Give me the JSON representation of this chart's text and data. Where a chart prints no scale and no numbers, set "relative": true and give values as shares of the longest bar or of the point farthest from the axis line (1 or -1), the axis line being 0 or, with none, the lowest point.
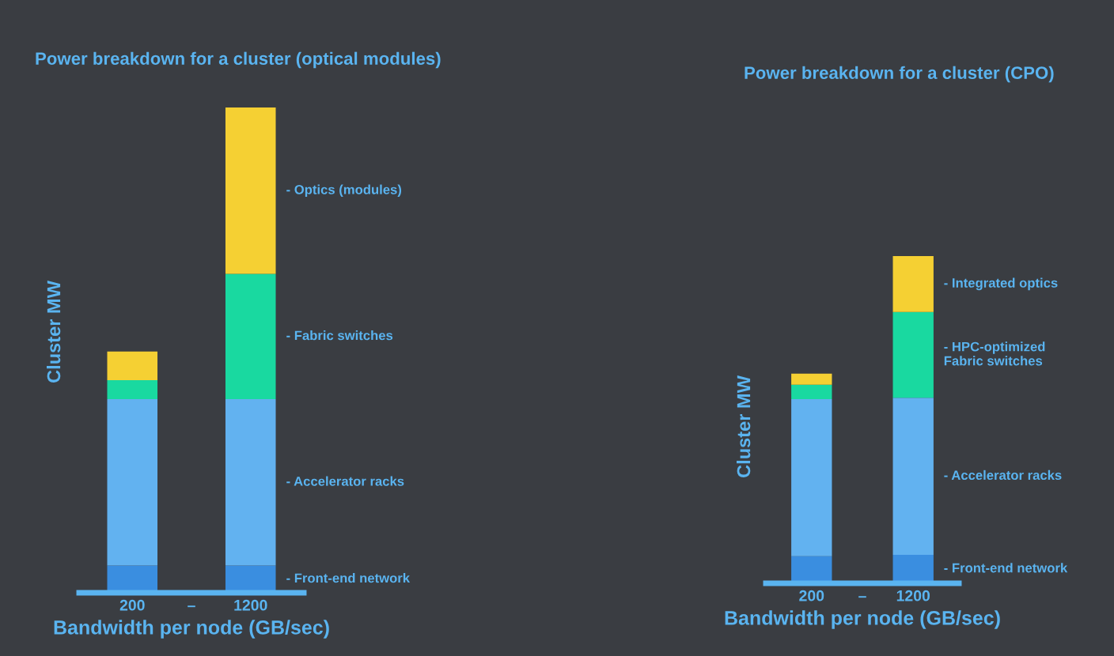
{
  "chart_data": [
    {
      "type": "bar",
      "title": "Power breakdown for a cluster (optical modules)",
      "xlabel": "Bandwidth per node (GB/sec)",
      "ylabel": "Cluster MW",
      "categories": [
        "200",
        "–",
        "1200"
      ],
      "stacked": true,
      "relative": true,
      "legend": false,
      "grid": false,
      "series": [
        {
          "name": "- Front-end network",
          "color": "#3a8ee0",
          "values": [
            0.056,
            null,
            0.056
          ]
        },
        {
          "name": "- Accelerator racks",
          "color": "#62b2f0",
          "values": [
            0.343,
            null,
            0.343
          ]
        },
        {
          "name": "- Fabric switches",
          "color": "#19d9a0",
          "values": [
            0.039,
            null,
            0.258
          ]
        },
        {
          "name": "- Optics (modules)",
          "color": "#f5d033",
          "values": [
            0.059,
            null,
            0.343
          ]
        }
      ]
    },
    {
      "type": "bar",
      "title": "Power breakdown for a cluster (CPO)",
      "xlabel": "Bandwidth per node (GB/sec)",
      "ylabel": "Cluster MW",
      "categories": [
        "200",
        "–",
        "1200"
      ],
      "stacked": true,
      "relative": true,
      "legend": false,
      "grid": false,
      "series": [
        {
          "name": "- Front-end network",
          "color": "#3a8ee0",
          "values": [
            0.083,
            null,
            0.087
          ]
        },
        {
          "name": "- Accelerator racks",
          "color": "#62b2f0",
          "values": [
            0.48,
            null,
            0.48
          ]
        },
        {
          "name": "- HPC-optimized\nFabric switches",
          "color": "#19d9a0",
          "values": [
            0.044,
            null,
            0.262
          ]
        },
        {
          "name": "- Integrated optics",
          "color": "#f5d033",
          "values": [
            0.034,
            null,
            0.171
          ]
        }
      ]
    }
  ]
}
